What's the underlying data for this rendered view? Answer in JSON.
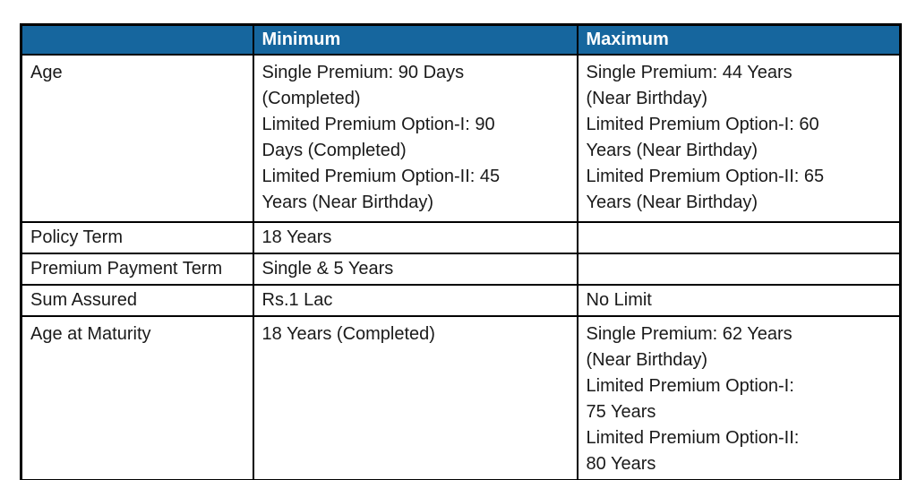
{
  "table": {
    "header": {
      "feature": "",
      "minimum": "Minimum",
      "maximum": "Maximum"
    },
    "rows": [
      {
        "label": "Age",
        "min": "Single Premium: 90 Days\n(Completed)\nLimited Premium Option-I: 90\nDays (Completed)\nLimited Premium Option-II: 45\nYears (Near Birthday)",
        "max": "Single Premium: 44 Years\n(Near Birthday)\nLimited Premium Option-I: 60\nYears (Near Birthday)\nLimited Premium Option-II: 65\nYears (Near Birthday)"
      },
      {
        "label": "Policy Term",
        "min": "18 Years",
        "max": ""
      },
      {
        "label": "Premium Payment Term",
        "min": "Single & 5 Years",
        "max": ""
      },
      {
        "label": "Sum Assured",
        "min": "Rs.1 Lac",
        "max": "No Limit"
      },
      {
        "label": "Age at Maturity",
        "min": "18 Years (Completed)",
        "max": "Single Premium: 62 Years\n(Near Birthday)\nLimited Premium Option-I:\n75 Years\nLimited Premium Option-II:\n80 Years"
      }
    ],
    "colors": {
      "header_bg": "#16669E",
      "header_text": "#FFFFFF",
      "border": "#000000"
    }
  }
}
